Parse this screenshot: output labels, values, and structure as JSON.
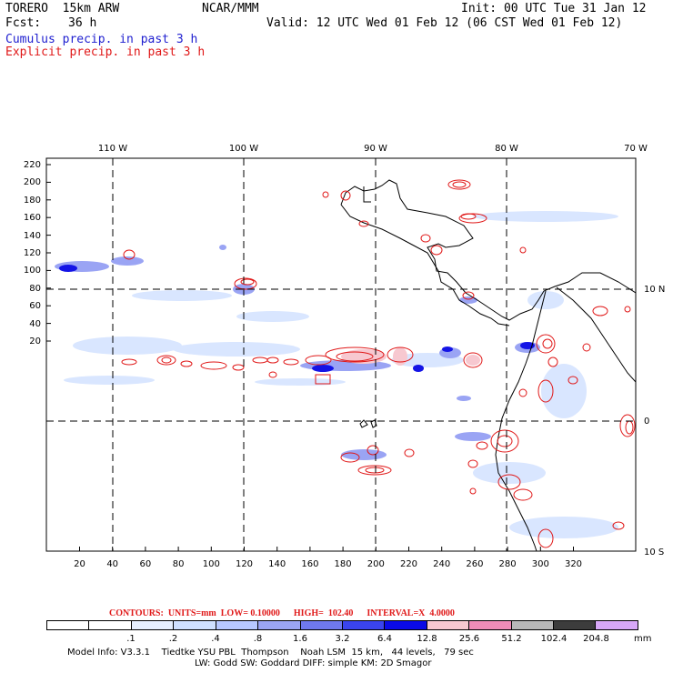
{
  "header": {
    "model": "TORERO  15km ARW",
    "org": "NCAR/MMM",
    "init": "Init: 00 UTC Tue 31 Jan 12",
    "fcst_label": "Fcst:",
    "fcst_value": "36 h",
    "valid": "Valid: 12 UTC Wed 01 Feb 12 (06 CST Wed 01 Feb 12)",
    "cumulus": "Cumulus precip. in past 3 h",
    "explicit": "Explicit precip. in past 3 h"
  },
  "colors": {
    "cumulus": "#2020d0",
    "explicit": "#e01818",
    "shade_light": "#cfe0ff",
    "shade_mid": "#7f8cf0",
    "shade_dark": "#1010ee",
    "shade_pink": "#f7c8d0"
  },
  "top_axis": [
    "110 W",
    "100 W",
    "90 W",
    "80 W",
    "70 W"
  ],
  "right_axis": [
    "10 N",
    "0",
    "10 S"
  ],
  "y_axis": [
    "220",
    "200",
    "180",
    "160",
    "140",
    "120",
    "100",
    "80",
    "60",
    "40",
    "20"
  ],
  "x_axis": [
    "20",
    "40",
    "60",
    "80",
    "100",
    "120",
    "140",
    "160",
    "180",
    "200",
    "220",
    "240",
    "260",
    "280",
    "300",
    "320"
  ],
  "contours_line": "CONTOURS:  UNITS=mm  LOW= 0.10000      HIGH=  102.40      INTERVAL=X  4.0000",
  "colorbar": {
    "colors": [
      "#ffffff",
      "#ffffff",
      "#e6efff",
      "#cfe0ff",
      "#b7c8ff",
      "#9aa4f4",
      "#6f78ee",
      "#3a44ee",
      "#0a0ae6",
      "#f7c8d0",
      "#f08cb8",
      "#b8b8b8",
      "#3c3c3c",
      "#d8a8f8"
    ],
    "labels": [
      ".1",
      ".2",
      ".4",
      ".8",
      "1.6",
      "3.2",
      "6.4",
      "12.8",
      "25.6",
      "51.2",
      "102.4",
      "204.8"
    ],
    "unit": "mm"
  },
  "footer": {
    "line1": "Model Info: V3.3.1    Tiedtke YSU PBL  Thompson    Noah LSM  15 km,   44 levels,   79 sec",
    "line2": "LW: Godd SW: Goddard DIFF: simple KM: 2D Smagor"
  }
}
